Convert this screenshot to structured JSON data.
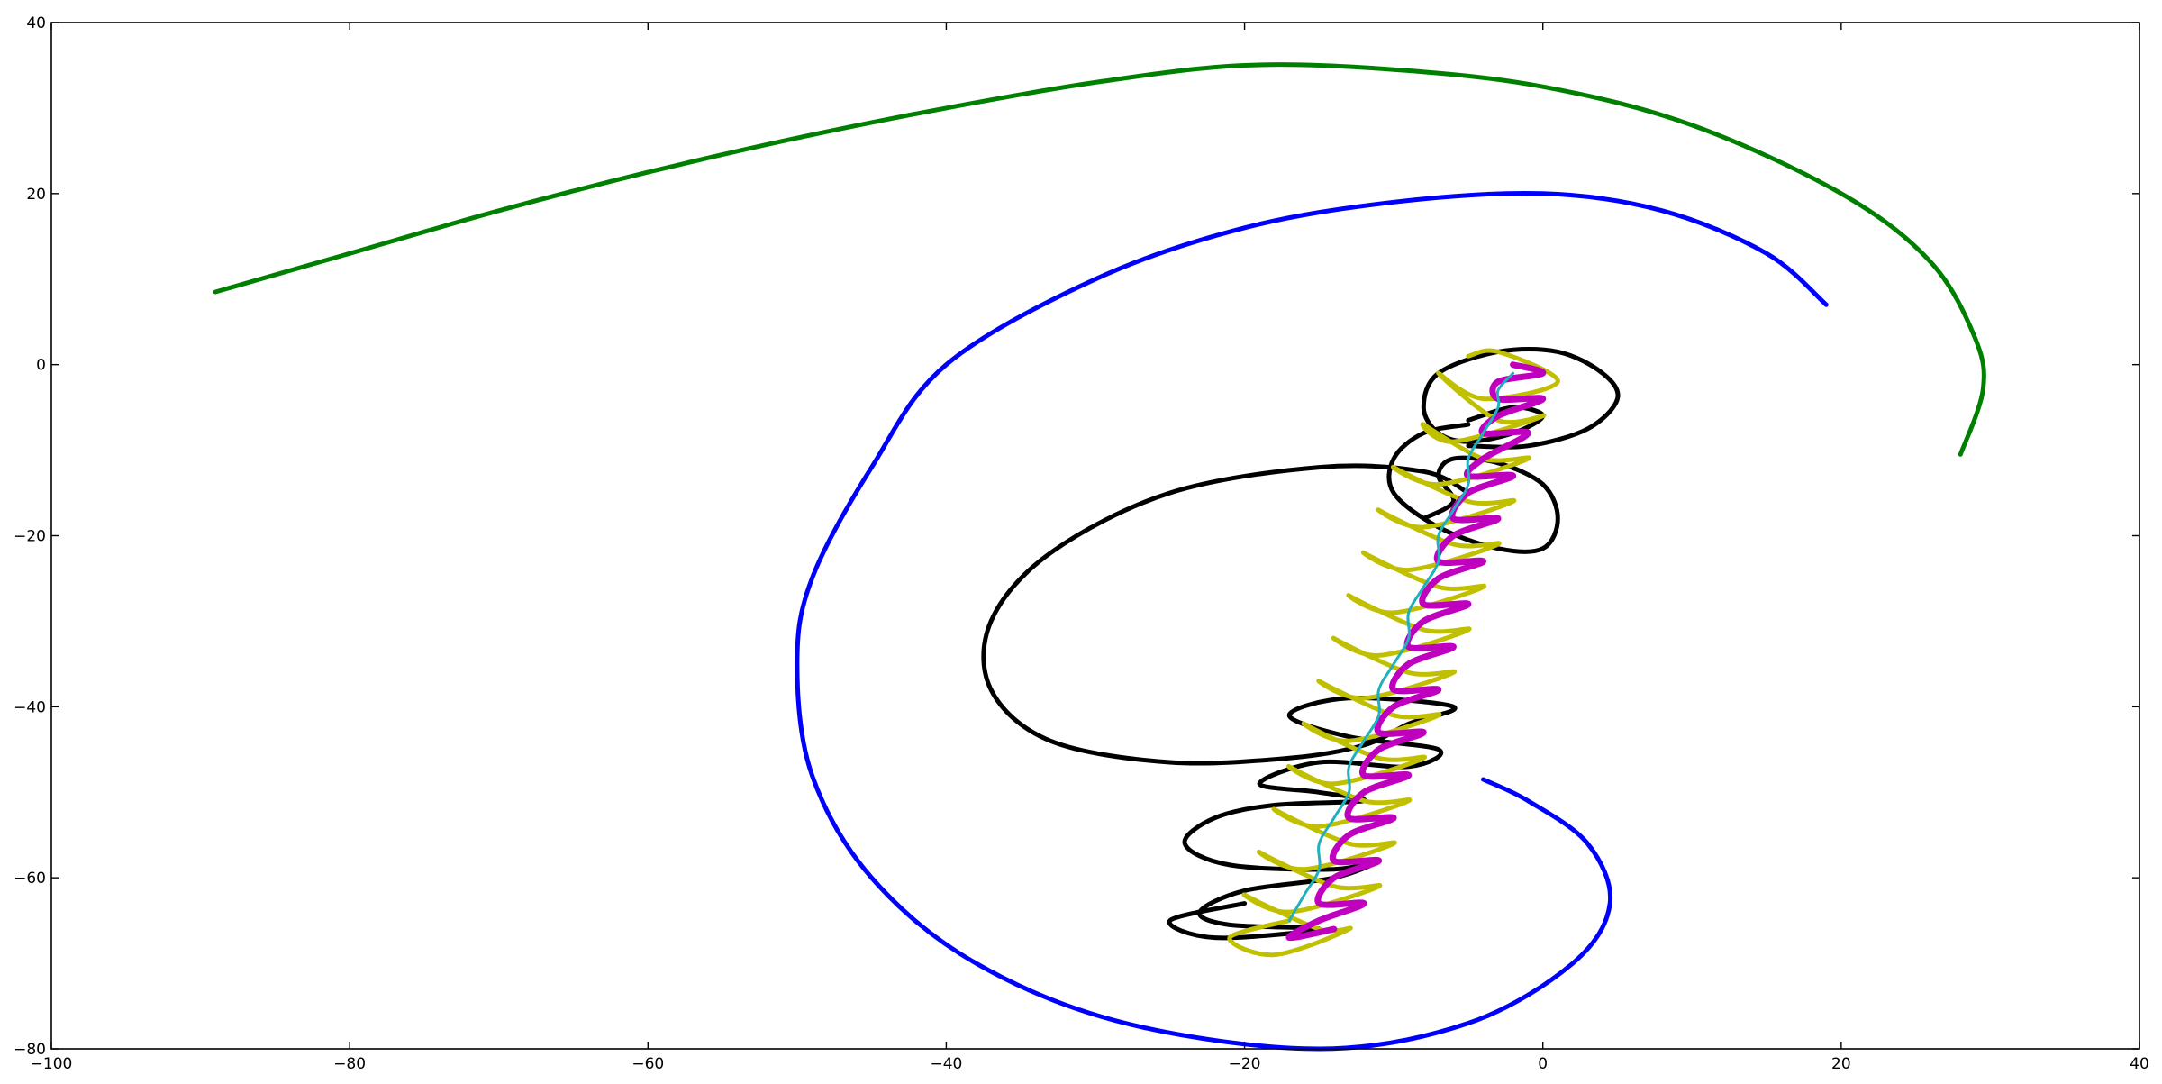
{
  "chart_data": {
    "type": "line",
    "title": "",
    "xlabel": "",
    "ylabel": "",
    "xlim": [
      -100,
      40
    ],
    "ylim": [
      -80,
      40
    ],
    "x_ticks": [
      -100,
      -80,
      -60,
      -40,
      -20,
      0,
      20,
      40
    ],
    "y_ticks": [
      -80,
      -60,
      -40,
      -20,
      0,
      20,
      40
    ],
    "x_tick_labels": [
      "−100",
      "−80",
      "−60",
      "−40",
      "−20",
      "0",
      "20",
      "40"
    ],
    "y_tick_labels": [
      "−80",
      "−60",
      "−40",
      "−20",
      "0",
      "20",
      "40"
    ],
    "grid": false,
    "legend": "none",
    "series": [
      {
        "color": "#008000",
        "points": [
          [
            -89,
            8.5
          ],
          [
            -80,
            13
          ],
          [
            -70,
            18
          ],
          [
            -60,
            22.5
          ],
          [
            -50,
            26.5
          ],
          [
            -40,
            30
          ],
          [
            -30,
            33
          ],
          [
            -20,
            35
          ],
          [
            -10,
            34.5
          ],
          [
            0,
            32.5
          ],
          [
            10,
            28
          ],
          [
            20,
            20
          ],
          [
            26,
            12
          ],
          [
            29,
            3
          ],
          [
            29.5,
            -3
          ],
          [
            28,
            -10.5
          ]
        ]
      },
      {
        "color": "#0000ff",
        "points": [
          [
            19,
            7
          ],
          [
            15,
            13
          ],
          [
            8,
            18
          ],
          [
            0,
            20
          ],
          [
            -10,
            19
          ],
          [
            -20,
            16
          ],
          [
            -30,
            10
          ],
          [
            -40,
            0
          ],
          [
            -45,
            -12
          ],
          [
            -49,
            -25
          ],
          [
            -50,
            -35
          ],
          [
            -49,
            -48
          ],
          [
            -45,
            -60
          ],
          [
            -38,
            -70
          ],
          [
            -28,
            -77
          ],
          [
            -15,
            -80
          ],
          [
            -5,
            -77
          ],
          [
            2,
            -70
          ],
          [
            4.5,
            -63
          ],
          [
            3,
            -56
          ],
          [
            -1,
            -51
          ],
          [
            -4,
            -48.5
          ]
        ]
      },
      {
        "color": "#000000",
        "points": [
          [
            -5,
            -15
          ],
          [
            -8,
            -12.5
          ],
          [
            -15,
            -12
          ],
          [
            -25,
            -15
          ],
          [
            -33,
            -22
          ],
          [
            -37,
            -30
          ],
          [
            -37,
            -38
          ],
          [
            -33,
            -44
          ],
          [
            -25,
            -46.5
          ],
          [
            -17,
            -46
          ],
          [
            -12,
            -44.5
          ],
          [
            -9,
            -42
          ],
          [
            -6,
            -40
          ],
          [
            -13,
            -39
          ],
          [
            -17,
            -41
          ],
          [
            -13,
            -43.5
          ],
          [
            -7,
            -45
          ],
          [
            -9,
            -47
          ],
          [
            -15,
            -46.5
          ],
          [
            -19,
            -49
          ],
          [
            -15,
            -50
          ],
          [
            -12,
            -51
          ],
          [
            -18,
            -51.5
          ],
          [
            -22,
            -53
          ],
          [
            -24,
            -56
          ],
          [
            -21,
            -58.5
          ],
          [
            -14,
            -59
          ],
          [
            -11,
            -58
          ],
          [
            -14,
            -60
          ],
          [
            -20,
            -61.5
          ],
          [
            -23,
            -64
          ],
          [
            -21,
            -65.5
          ],
          [
            -15,
            -66
          ],
          [
            -22,
            -67
          ],
          [
            -25,
            -65
          ],
          [
            -20,
            -63
          ]
        ]
      },
      {
        "color": "#000000",
        "points": [
          [
            -5,
            -6.5
          ],
          [
            -2,
            -5
          ],
          [
            0,
            -6
          ],
          [
            -2,
            -8
          ],
          [
            -5,
            -9
          ],
          [
            -7,
            -8
          ],
          [
            -8,
            -5
          ],
          [
            -7,
            -1
          ],
          [
            -3,
            1.5
          ],
          [
            1,
            1.5
          ],
          [
            4,
            -1
          ],
          [
            5,
            -4
          ],
          [
            3,
            -7.5
          ],
          [
            -1,
            -9.5
          ],
          [
            -5,
            -9.5
          ]
        ]
      },
      {
        "color": "#000000",
        "points": [
          [
            -5,
            -7
          ],
          [
            -8,
            -8
          ],
          [
            -10,
            -11
          ],
          [
            -10,
            -15
          ],
          [
            -7,
            -19
          ],
          [
            -3,
            -21.5
          ],
          [
            0,
            -21.5
          ],
          [
            1,
            -18
          ],
          [
            0,
            -14
          ],
          [
            -3,
            -11.5
          ],
          [
            -6,
            -11
          ],
          [
            -7,
            -13
          ],
          [
            -6,
            -16
          ],
          [
            -8,
            -18
          ]
        ]
      },
      {
        "color": "#c0c000",
        "points": [
          [
            -5,
            1
          ],
          [
            -3,
            1.5
          ],
          [
            1,
            -2
          ],
          [
            -4,
            -4
          ],
          [
            -7,
            -1
          ],
          [
            -3,
            -6.5
          ],
          [
            0,
            -6
          ],
          [
            -6,
            -9
          ],
          [
            -8,
            -7
          ],
          [
            -4,
            -11
          ],
          [
            -1,
            -11
          ],
          [
            -7,
            -14
          ],
          [
            -10,
            -12
          ],
          [
            -5,
            -16
          ],
          [
            -2,
            -16
          ],
          [
            -8,
            -19
          ],
          [
            -11,
            -17
          ],
          [
            -6,
            -21
          ],
          [
            -3,
            -21
          ],
          [
            -9,
            -24
          ],
          [
            -12,
            -22
          ],
          [
            -7,
            -26
          ],
          [
            -4,
            -26
          ],
          [
            -10,
            -29
          ],
          [
            -13,
            -27
          ],
          [
            -8,
            -31
          ],
          [
            -5,
            -31
          ],
          [
            -11,
            -34
          ],
          [
            -14,
            -32
          ],
          [
            -9,
            -36
          ],
          [
            -6,
            -36
          ],
          [
            -12,
            -39
          ],
          [
            -15,
            -37
          ],
          [
            -10,
            -41
          ],
          [
            -7,
            -41
          ],
          [
            -13,
            -44
          ],
          [
            -16,
            -42
          ],
          [
            -11,
            -46
          ],
          [
            -8,
            -46
          ],
          [
            -14,
            -49
          ],
          [
            -17,
            -47
          ],
          [
            -12,
            -51
          ],
          [
            -9,
            -51
          ],
          [
            -15,
            -54
          ],
          [
            -18,
            -52
          ],
          [
            -13,
            -56
          ],
          [
            -10,
            -56
          ],
          [
            -16,
            -59
          ],
          [
            -19,
            -57
          ],
          [
            -14,
            -61
          ],
          [
            -11,
            -61
          ],
          [
            -17,
            -64
          ],
          [
            -20,
            -62
          ],
          [
            -15,
            -66
          ],
          [
            -13,
            -66
          ],
          [
            -18,
            -69
          ],
          [
            -21,
            -67
          ],
          [
            -17,
            -65
          ]
        ]
      },
      {
        "color": "#bf00bf",
        "points": [
          [
            -2,
            0
          ],
          [
            0,
            -1
          ],
          [
            -3,
            -2
          ],
          [
            -3,
            -4
          ],
          [
            0,
            -4
          ],
          [
            -3,
            -6
          ],
          [
            -4,
            -8
          ],
          [
            -1,
            -8
          ],
          [
            -4,
            -11
          ],
          [
            -5,
            -13
          ],
          [
            -2,
            -13
          ],
          [
            -5,
            -15
          ],
          [
            -6,
            -18
          ],
          [
            -3,
            -18
          ],
          [
            -6,
            -20
          ],
          [
            -7,
            -23
          ],
          [
            -4,
            -23
          ],
          [
            -7,
            -25
          ],
          [
            -8,
            -28
          ],
          [
            -5,
            -28
          ],
          [
            -8,
            -30
          ],
          [
            -9,
            -33
          ],
          [
            -6,
            -33
          ],
          [
            -9,
            -35
          ],
          [
            -10,
            -38
          ],
          [
            -7,
            -38
          ],
          [
            -10,
            -40
          ],
          [
            -11,
            -43
          ],
          [
            -8,
            -43
          ],
          [
            -11,
            -45
          ],
          [
            -12,
            -48
          ],
          [
            -9,
            -48
          ],
          [
            -12,
            -50
          ],
          [
            -13,
            -53
          ],
          [
            -10,
            -53
          ],
          [
            -13,
            -55
          ],
          [
            -14,
            -58
          ],
          [
            -11,
            -58
          ],
          [
            -14,
            -60
          ],
          [
            -15,
            -63
          ],
          [
            -12,
            -63
          ],
          [
            -15,
            -65
          ],
          [
            -17,
            -67
          ],
          [
            -14,
            -66
          ]
        ]
      },
      {
        "color": "#20b0c0",
        "points": [
          [
            -2,
            -1
          ],
          [
            -3,
            -3
          ],
          [
            -3,
            -5
          ],
          [
            -4,
            -8
          ],
          [
            -5,
            -11
          ],
          [
            -5,
            -14
          ],
          [
            -6,
            -17
          ],
          [
            -7,
            -20
          ],
          [
            -7,
            -23
          ],
          [
            -8,
            -26
          ],
          [
            -9,
            -29
          ],
          [
            -9,
            -32
          ],
          [
            -10,
            -35
          ],
          [
            -11,
            -38
          ],
          [
            -11,
            -41
          ],
          [
            -12,
            -44
          ],
          [
            -13,
            -47
          ],
          [
            -13,
            -50
          ],
          [
            -14,
            -53
          ],
          [
            -15,
            -56
          ],
          [
            -15,
            -59
          ],
          [
            -16,
            -62
          ],
          [
            -17,
            -65
          ]
        ]
      }
    ]
  }
}
